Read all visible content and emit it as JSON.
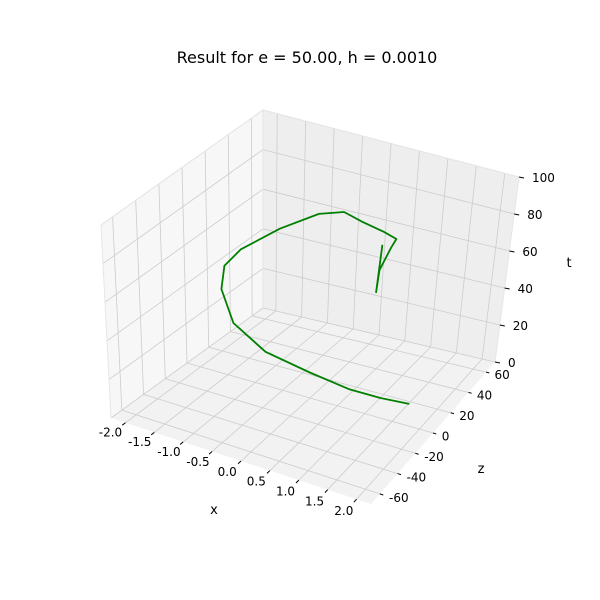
{
  "chart_data": {
    "type": "line",
    "projection": "3d",
    "title": "Result for e = 50.00, h = 0.0010",
    "xlabel": "x",
    "ylabel": "z",
    "zlabel": "t",
    "xlim": [
      -2.25,
      2.25
    ],
    "ylim": [
      -70,
      70
    ],
    "zlim": [
      0,
      100
    ],
    "x_ticks": [
      "-2.0",
      "-1.5",
      "-1.0",
      "-0.5",
      "0.0",
      "0.5",
      "1.0",
      "1.5",
      "2.0"
    ],
    "y_ticks": [
      "-60",
      "-40",
      "-20",
      "0",
      "20",
      "40",
      "60"
    ],
    "z_ticks": [
      "0",
      "20",
      "40",
      "60",
      "80",
      "100"
    ],
    "grid": true,
    "series": [
      {
        "color": "#008000",
        "points": [
          {
            "x": 1.5,
            "y": 18,
            "t": 0
          },
          {
            "x": 1.2,
            "y": 5,
            "t": 7
          },
          {
            "x": 0.8,
            "y": -5,
            "t": 13
          },
          {
            "x": 0.2,
            "y": -12,
            "t": 20
          },
          {
            "x": -0.5,
            "y": -17,
            "t": 27
          },
          {
            "x": -1.2,
            "y": -10,
            "t": 33
          },
          {
            "x": -1.7,
            "y": 5,
            "t": 40
          },
          {
            "x": -1.9,
            "y": 18,
            "t": 45
          },
          {
            "x": -1.8,
            "y": 28,
            "t": 50
          },
          {
            "x": -1.3,
            "y": 38,
            "t": 60
          },
          {
            "x": -0.8,
            "y": 48,
            "t": 67
          },
          {
            "x": -0.3,
            "y": 45,
            "t": 73
          },
          {
            "x": 0.3,
            "y": 30,
            "t": 79
          },
          {
            "x": 1.0,
            "y": 12,
            "t": 87
          },
          {
            "x": 1.5,
            "y": -4,
            "t": 94
          },
          {
            "x": 1.7,
            "y": -20,
            "t": 98
          },
          {
            "x": 1.6,
            "y": -25,
            "t": 88
          },
          {
            "x": 1.5,
            "y": -22,
            "t": 75
          },
          {
            "x": 1.3,
            "y": -6,
            "t": 90
          }
        ]
      }
    ]
  }
}
